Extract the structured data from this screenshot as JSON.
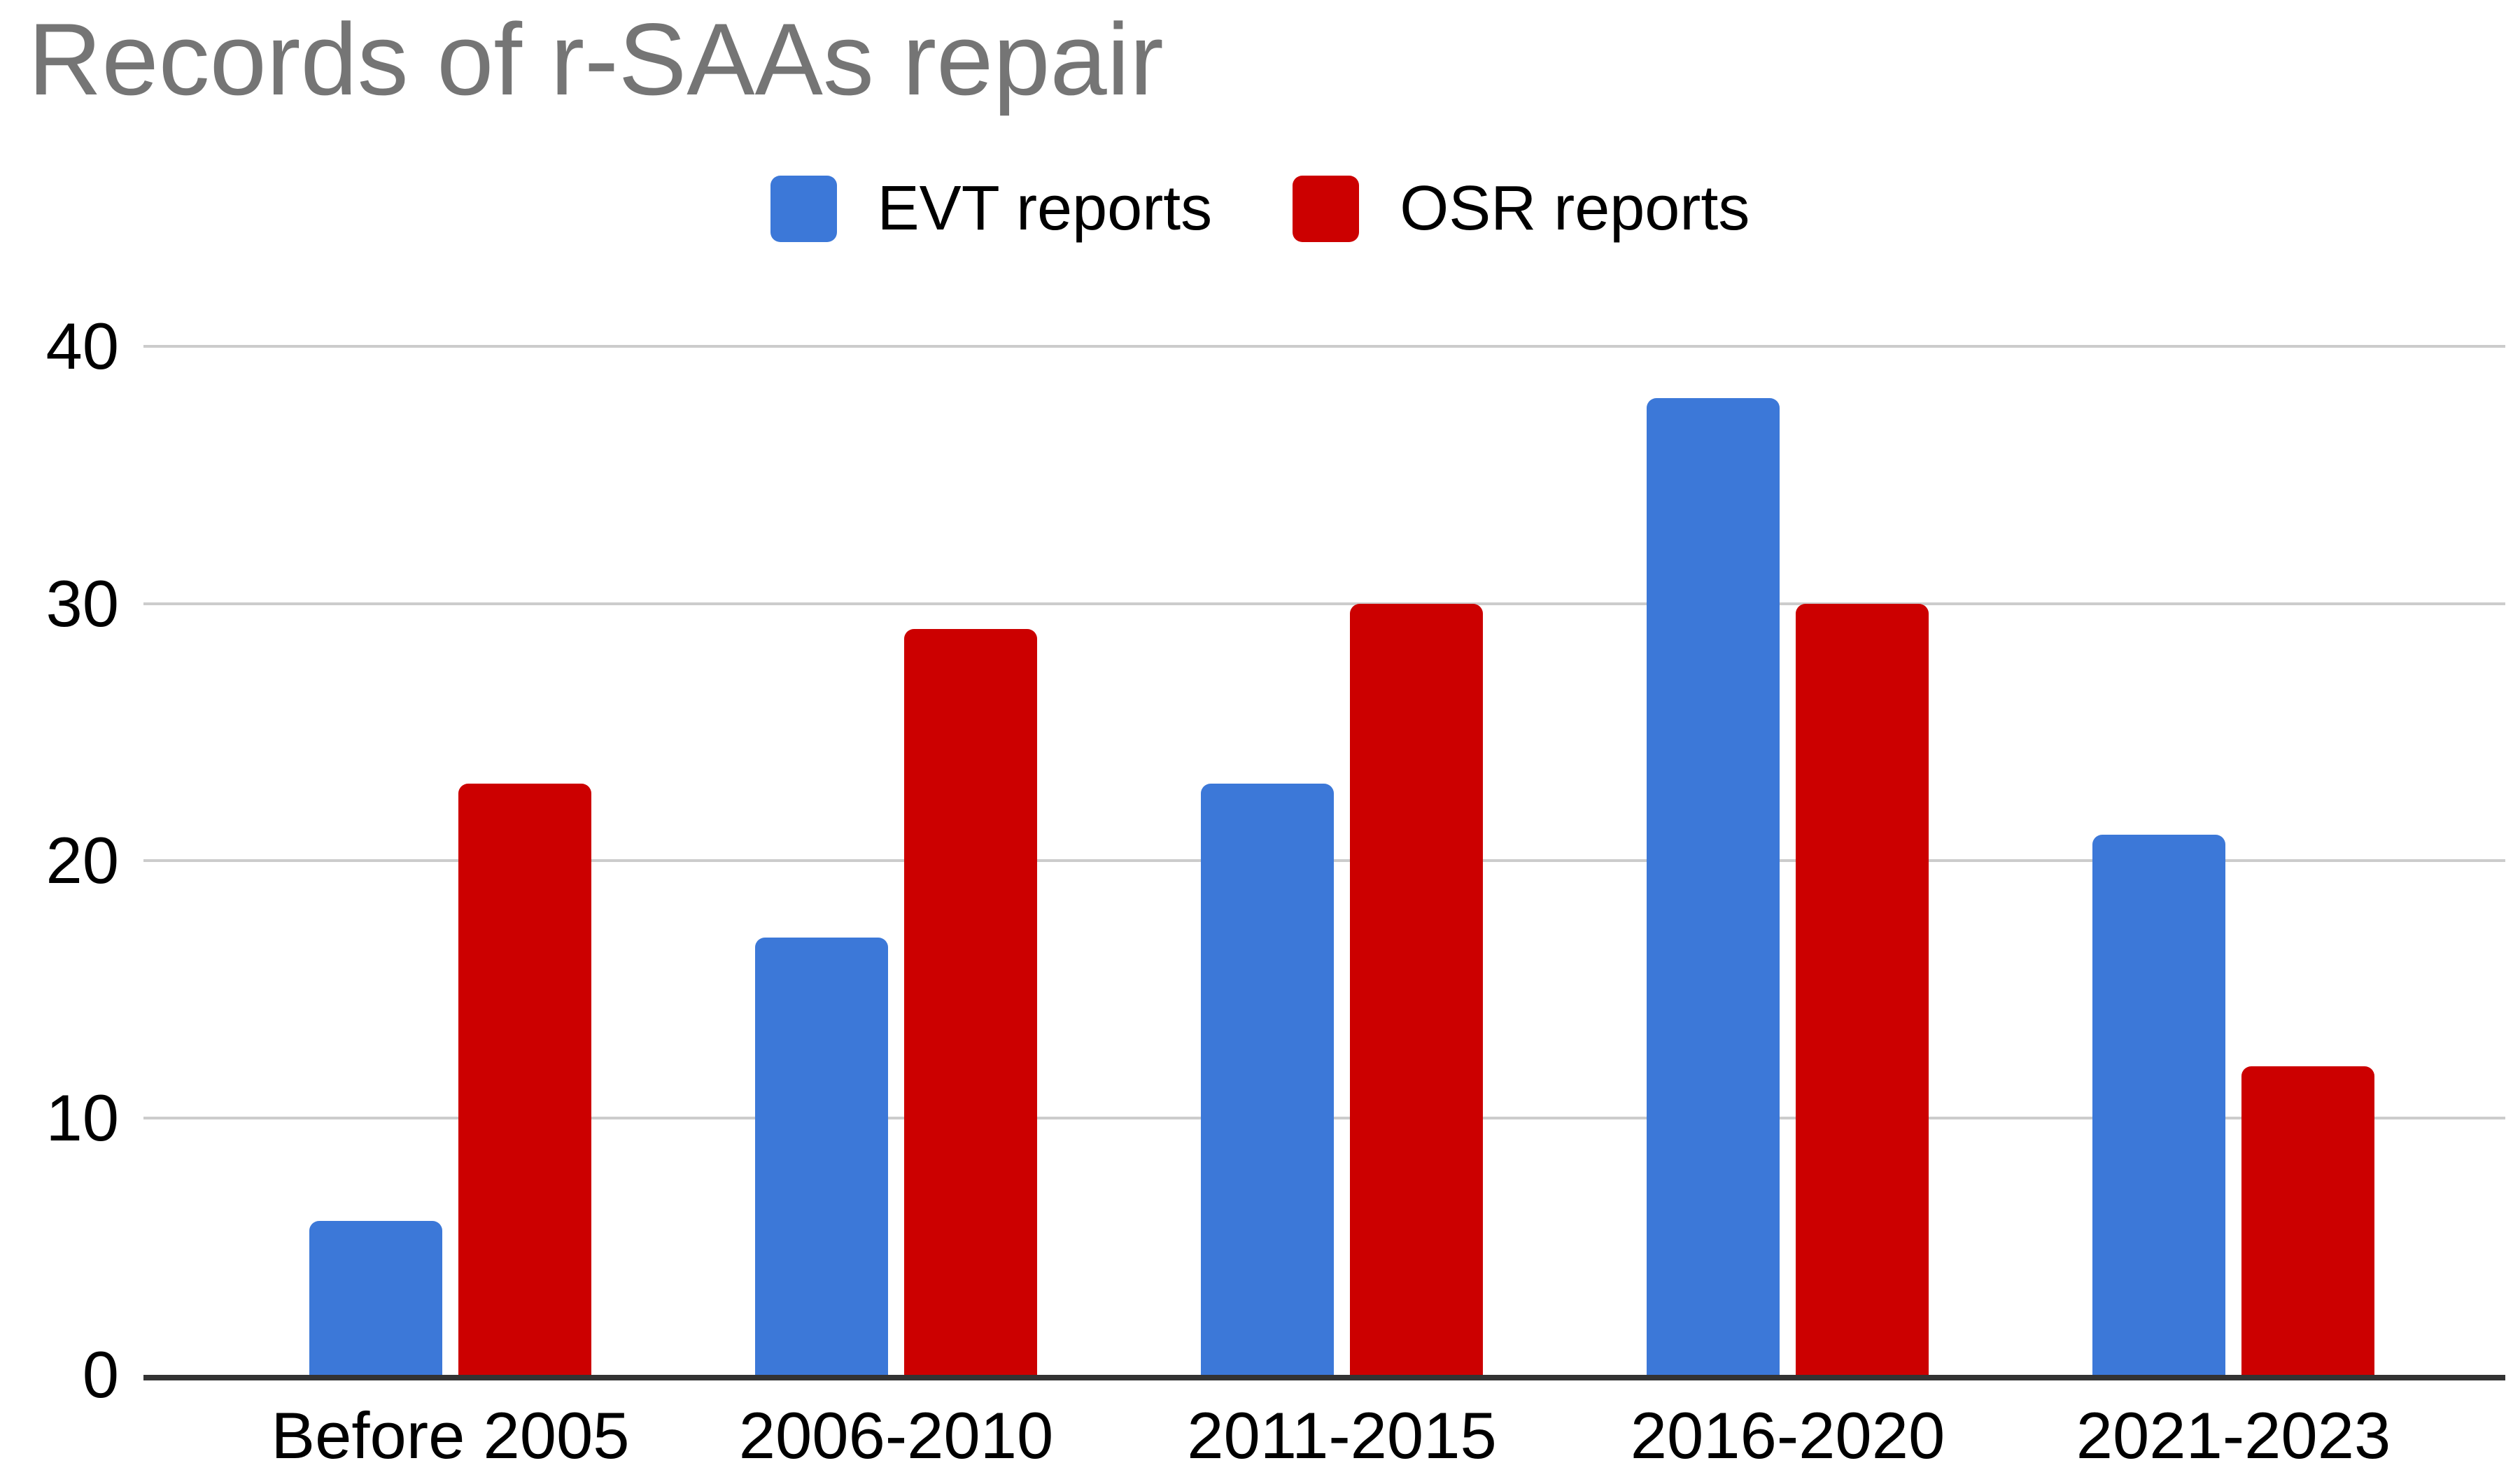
{
  "chart_data": {
    "type": "bar",
    "title": "Records of r-SAAs repair",
    "categories": [
      "Before 2005",
      "2006-2010",
      "2011-2015",
      "2016-2020",
      "2021-2023"
    ],
    "series": [
      {
        "name": "EVT reports",
        "color": "#3c78d8",
        "values": [
          6,
          17,
          23,
          38,
          21
        ]
      },
      {
        "name": "OSR reports",
        "color": "#cc0000",
        "values": [
          23,
          29,
          30,
          30,
          12
        ]
      }
    ],
    "xlabel": "",
    "ylabel": "",
    "ylim": [
      0,
      40
    ],
    "yticks": [
      0,
      10,
      20,
      30,
      40
    ],
    "grid": true,
    "legend_position": "top"
  },
  "styles": {
    "title_color": "#757575",
    "grid_color": "#cccccc",
    "axis_color": "#333333",
    "label_color": "#000000",
    "background": "#ffffff"
  }
}
